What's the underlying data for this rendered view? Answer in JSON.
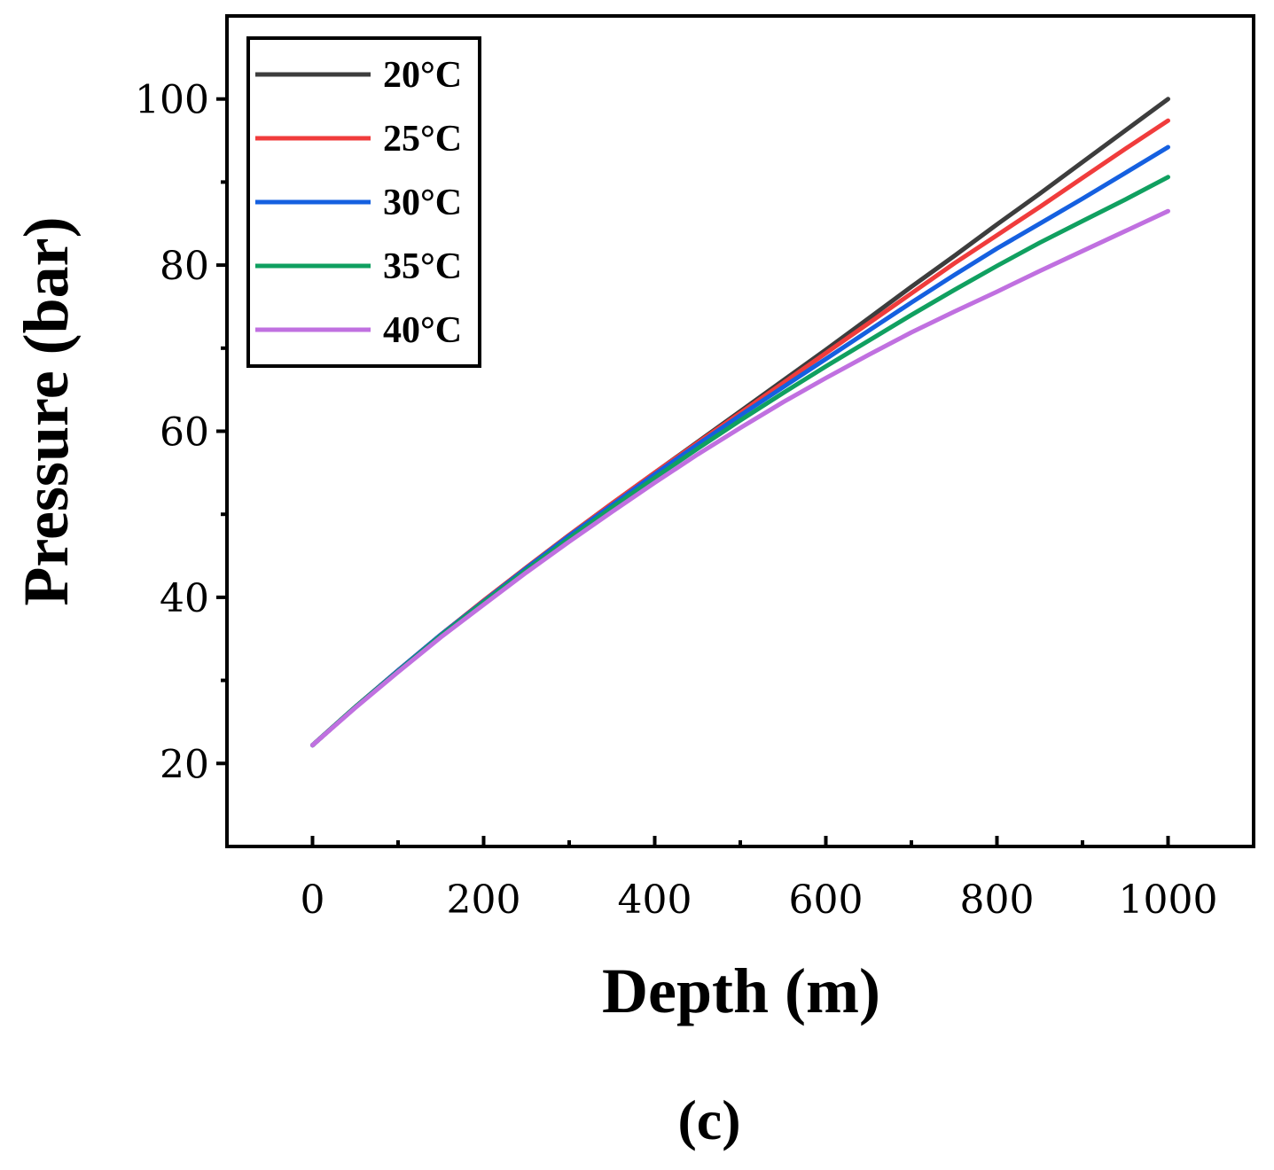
{
  "chart_data": {
    "type": "line",
    "title": "",
    "xlabel": "Depth (m)",
    "ylabel": "Pressure (bar)",
    "panel_label": "(c)",
    "xlim": [
      -100,
      1100
    ],
    "ylim": [
      10,
      110
    ],
    "xticks": [
      0,
      200,
      400,
      600,
      800,
      1000
    ],
    "yticks": [
      20,
      40,
      60,
      80,
      100
    ],
    "x_minor_ticks": [
      100,
      300,
      500,
      700,
      900
    ],
    "y_minor_ticks": [
      30,
      50,
      70,
      90
    ],
    "grid": false,
    "legend_position": "top-left",
    "x": [
      0,
      50,
      100,
      150,
      200,
      250,
      300,
      350,
      400,
      450,
      500,
      550,
      600,
      650,
      700,
      750,
      800,
      850,
      900,
      950,
      1000
    ],
    "series": [
      {
        "name": "20°C",
        "color": "#3d3d3d",
        "values": [
          22.2,
          26.8,
          31.2,
          35.5,
          39.6,
          43.6,
          47.5,
          51.3,
          55.0,
          58.7,
          62.4,
          66.1,
          69.8,
          73.6,
          77.4,
          81.1,
          84.9,
          88.6,
          92.4,
          96.2,
          100.0
        ]
      },
      {
        "name": "25°C",
        "color": "#f03c3c",
        "values": [
          22.2,
          26.8,
          31.2,
          35.5,
          39.6,
          43.6,
          47.5,
          51.3,
          55.0,
          58.6,
          62.2,
          65.8,
          69.4,
          73.0,
          76.6,
          80.2,
          83.6,
          87.0,
          90.5,
          94.0,
          97.4
        ]
      },
      {
        "name": "30°C",
        "color": "#1560e0",
        "values": [
          22.2,
          26.8,
          31.2,
          35.5,
          39.5,
          43.5,
          47.4,
          51.1,
          54.8,
          58.4,
          61.9,
          65.3,
          68.7,
          72.1,
          75.5,
          78.8,
          82.0,
          85.0,
          88.0,
          91.1,
          94.2
        ]
      },
      {
        "name": "35°C",
        "color": "#10a060",
        "values": [
          22.2,
          26.8,
          31.1,
          35.4,
          39.4,
          43.3,
          47.1,
          50.8,
          54.4,
          57.9,
          61.3,
          64.6,
          67.8,
          70.9,
          74.0,
          77.0,
          79.9,
          82.7,
          85.3,
          87.9,
          90.6
        ]
      },
      {
        "name": "40°C",
        "color": "#c070e0",
        "values": [
          22.2,
          26.7,
          31.0,
          35.2,
          39.1,
          43.0,
          46.7,
          50.3,
          53.8,
          57.2,
          60.4,
          63.5,
          66.4,
          69.2,
          71.9,
          74.4,
          76.8,
          79.3,
          81.7,
          84.1,
          86.5
        ]
      }
    ]
  }
}
